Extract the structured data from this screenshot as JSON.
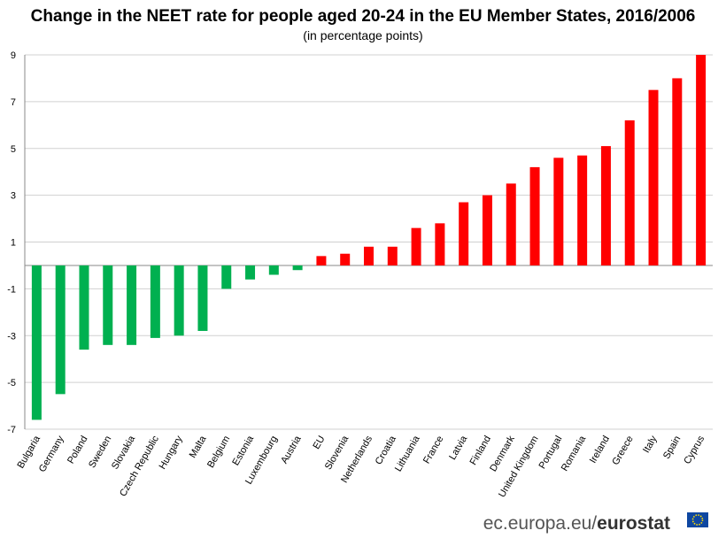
{
  "chart_data": {
    "type": "bar",
    "title": "Change in the NEET rate for people aged 20-24 in the EU Member States, 2016/2006",
    "subtitle": "(in percentage points)",
    "categories": [
      "Bulgaria",
      "Germany",
      "Poland",
      "Sweden",
      "Slovakia",
      "Czech Republic",
      "Hungary",
      "Malta",
      "Belgium",
      "Estonia",
      "Luxembourg",
      "Austria",
      "EU",
      "Slovenia",
      "Netherlands",
      "Croatia",
      "Lithuania",
      "France",
      "Latvia",
      "Finland",
      "Denmark",
      "United Kingdom",
      "Portugal",
      "Romania",
      "Ireland",
      "Greece",
      "Italy",
      "Spain",
      "Cyprus"
    ],
    "values": [
      -6.6,
      -5.5,
      -3.6,
      -3.4,
      -3.4,
      -3.1,
      -3.0,
      -2.8,
      -1.0,
      -0.6,
      -0.4,
      -0.2,
      0.4,
      0.5,
      0.8,
      0.8,
      1.6,
      1.8,
      2.7,
      3.0,
      3.5,
      4.2,
      4.6,
      4.7,
      5.1,
      6.2,
      7.5,
      8.0,
      9.0
    ],
    "positive_color": "#ff0000",
    "negative_color": "#00b050",
    "ylim": [
      -7,
      9
    ],
    "yticks": [
      -7,
      -5,
      -3,
      -1,
      1,
      3,
      5,
      7,
      9
    ],
    "grid": true,
    "footer": {
      "site": "ec.europa.eu/",
      "brand": "eurostat"
    }
  }
}
